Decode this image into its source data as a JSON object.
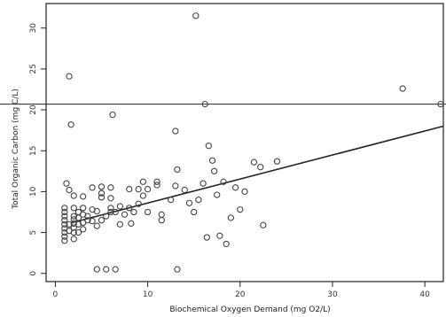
{
  "chart_data": {
    "type": "scatter",
    "title": "",
    "xlabel": "Biochemical Oxygen Demand (mg O2/L)",
    "ylabel": "Total Organic Carbon (mg C/L)",
    "xlim": [
      -1,
      42
    ],
    "ylim": [
      -1,
      33
    ],
    "xticks": [
      0,
      10,
      20,
      30,
      40
    ],
    "yticks": [
      0,
      5,
      10,
      15,
      20,
      25,
      30
    ],
    "grid": false,
    "colors": {
      "points": "#444444",
      "trend": "#222222",
      "reference": "#222222",
      "axis": "#222222"
    },
    "reference_line": {
      "y": 20.7
    },
    "trend_line": {
      "x": [
        1.8,
        42
      ],
      "y": [
        6.2,
        18.0
      ]
    },
    "points": [
      [
        1,
        4
      ],
      [
        1,
        4.5
      ],
      [
        1,
        5
      ],
      [
        1,
        5.5
      ],
      [
        1,
        6
      ],
      [
        1,
        6.5
      ],
      [
        1,
        7
      ],
      [
        1,
        7.5
      ],
      [
        1,
        8
      ],
      [
        1.2,
        11
      ],
      [
        1.5,
        24.1
      ],
      [
        1.7,
        18.2
      ],
      [
        1.5,
        10.2
      ],
      [
        1.5,
        5.2
      ],
      [
        1.5,
        6
      ],
      [
        2,
        4.2
      ],
      [
        2,
        5
      ],
      [
        2,
        5.6
      ],
      [
        2,
        6.1
      ],
      [
        2,
        6.6
      ],
      [
        2,
        7
      ],
      [
        2,
        8
      ],
      [
        2,
        9.5
      ],
      [
        2.5,
        5
      ],
      [
        2.5,
        6
      ],
      [
        2.5,
        6.8
      ],
      [
        2.5,
        7.5
      ],
      [
        3,
        5.4
      ],
      [
        3,
        6.2
      ],
      [
        3,
        7.2
      ],
      [
        3,
        8
      ],
      [
        3,
        9.4
      ],
      [
        3.5,
        6.5
      ],
      [
        3.5,
        7
      ],
      [
        4,
        10.5
      ],
      [
        4,
        7.8
      ],
      [
        4,
        6.4
      ],
      [
        4.5,
        5.8
      ],
      [
        4.5,
        7.6
      ],
      [
        4.5,
        0.5
      ],
      [
        5,
        6.5
      ],
      [
        5,
        9.3
      ],
      [
        5,
        9.8
      ],
      [
        5,
        10.6
      ],
      [
        5.5,
        7
      ],
      [
        5.5,
        0.5
      ],
      [
        6,
        8
      ],
      [
        6,
        9.2
      ],
      [
        6,
        10.5
      ],
      [
        6,
        7.5
      ],
      [
        6.2,
        19.4
      ],
      [
        6.5,
        0.5
      ],
      [
        6.5,
        7.5
      ],
      [
        7,
        8.2
      ],
      [
        7,
        6
      ],
      [
        7.5,
        7.2
      ],
      [
        8,
        10.3
      ],
      [
        8,
        8
      ],
      [
        8.2,
        6.1
      ],
      [
        8.5,
        7.5
      ],
      [
        9,
        10.3
      ],
      [
        9,
        8.5
      ],
      [
        9.5,
        11.2
      ],
      [
        9.5,
        9.5
      ],
      [
        10,
        10.3
      ],
      [
        10,
        7.5
      ],
      [
        11,
        10.8
      ],
      [
        11,
        11.2
      ],
      [
        11.5,
        6.5
      ],
      [
        11.5,
        7.2
      ],
      [
        12.5,
        9
      ],
      [
        13,
        10.7
      ],
      [
        13,
        17.4
      ],
      [
        13.2,
        12.7
      ],
      [
        13.2,
        0.5
      ],
      [
        14,
        10.2
      ],
      [
        14.5,
        8.6
      ],
      [
        15,
        7.5
      ],
      [
        15.2,
        31.5
      ],
      [
        15.5,
        9
      ],
      [
        16,
        11
      ],
      [
        16.2,
        20.7
      ],
      [
        16.4,
        4.4
      ],
      [
        16.6,
        15.6
      ],
      [
        17,
        13.8
      ],
      [
        17.2,
        12.5
      ],
      [
        17.5,
        9.6
      ],
      [
        17.8,
        4.6
      ],
      [
        18.2,
        11.2
      ],
      [
        18.5,
        3.6
      ],
      [
        19,
        6.8
      ],
      [
        19.5,
        10.5
      ],
      [
        20,
        7.8
      ],
      [
        20.5,
        10
      ],
      [
        21.5,
        13.6
      ],
      [
        22.2,
        13
      ],
      [
        22.5,
        5.9
      ],
      [
        24,
        13.7
      ],
      [
        37.6,
        22.6
      ],
      [
        41.7,
        20.7
      ]
    ]
  }
}
